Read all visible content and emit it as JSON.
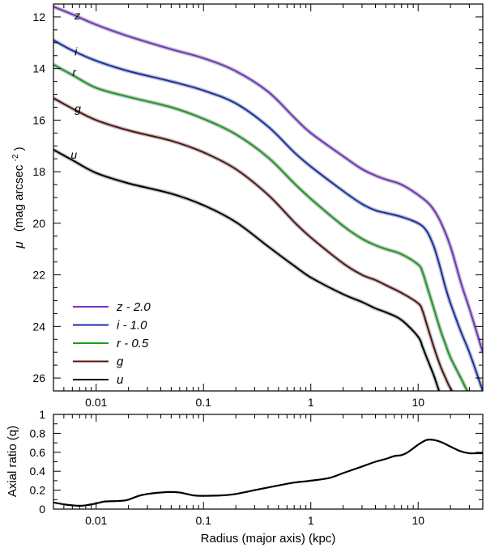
{
  "chart_data": [
    {
      "type": "line",
      "title": "",
      "xlabel": "",
      "ylabel_symbol": "μ",
      "ylabel_main": "(mag arcsec",
      "ylabel_exp": "-2",
      "ylabel_close": ")",
      "xscale": "log",
      "yaxis_inverted": true,
      "xlim": [
        0.004,
        40
      ],
      "ylim": [
        26.5,
        11.5
      ],
      "xticks": [
        {
          "v": 0.01,
          "label": "0.01"
        },
        {
          "v": 0.1,
          "label": "0.1"
        },
        {
          "v": 1,
          "label": "1"
        },
        {
          "v": 10,
          "label": "10"
        }
      ],
      "yticks": [
        {
          "v": 12,
          "label": "12"
        },
        {
          "v": 14,
          "label": "14"
        },
        {
          "v": 16,
          "label": "16"
        },
        {
          "v": 18,
          "label": "18"
        },
        {
          "v": 20,
          "label": "20"
        },
        {
          "v": 22,
          "label": "22"
        },
        {
          "v": 24,
          "label": "24"
        },
        {
          "v": 26,
          "label": "26"
        }
      ],
      "legend_position": "bottom-left",
      "legend": [
        {
          "label": "z - 2.0",
          "color": "#7a2fc9"
        },
        {
          "label": "i  - 1.0",
          "color": "#1a2fb0"
        },
        {
          "label": "r - 0.5",
          "color": "#1f9a1f"
        },
        {
          "label": "g",
          "color": "#5a1410"
        },
        {
          "label": "u",
          "color": "#000000"
        }
      ],
      "series": [
        {
          "name": "z",
          "label": "z",
          "color": "#7a2fc9",
          "label_at": [
            0.0063,
            12.1
          ],
          "x": [
            0.004,
            0.006,
            0.01,
            0.02,
            0.05,
            0.1,
            0.2,
            0.4,
            0.7,
            1,
            2,
            3,
            4,
            5,
            7,
            10,
            13,
            16,
            20,
            25,
            30,
            40
          ],
          "y": [
            11.6,
            11.9,
            12.3,
            12.75,
            13.25,
            13.6,
            14.1,
            14.9,
            15.9,
            16.5,
            17.4,
            17.9,
            18.15,
            18.3,
            18.5,
            18.9,
            19.3,
            19.9,
            20.9,
            22.3,
            23.3,
            25.0
          ]
        },
        {
          "name": "i",
          "label": "i",
          "color": "#1a2fb0",
          "label_at": [
            0.0063,
            13.5
          ],
          "x": [
            0.004,
            0.006,
            0.01,
            0.02,
            0.05,
            0.1,
            0.2,
            0.4,
            0.7,
            1,
            2,
            3,
            4,
            5,
            7,
            10,
            12,
            14,
            16,
            18,
            20,
            25,
            30,
            40
          ],
          "y": [
            12.9,
            13.3,
            13.7,
            14.1,
            14.5,
            14.85,
            15.35,
            16.25,
            17.25,
            17.8,
            18.75,
            19.25,
            19.5,
            19.6,
            19.75,
            20.0,
            20.3,
            20.9,
            21.7,
            22.5,
            23.1,
            24.2,
            25.0,
            26.5
          ]
        },
        {
          "name": "r",
          "label": "r",
          "color": "#1f9a1f",
          "label_at": [
            0.006,
            14.3
          ],
          "x": [
            0.004,
            0.006,
            0.01,
            0.02,
            0.05,
            0.1,
            0.2,
            0.4,
            0.7,
            1,
            2,
            3,
            4,
            5,
            7,
            10,
            11,
            12,
            14,
            16,
            18,
            20,
            25,
            30,
            40
          ],
          "y": [
            13.85,
            14.25,
            14.75,
            15.1,
            15.5,
            15.95,
            16.55,
            17.45,
            18.45,
            19.05,
            20.1,
            20.6,
            20.85,
            21.0,
            21.2,
            21.6,
            21.9,
            22.4,
            23.3,
            24.1,
            24.7,
            25.2,
            26.0,
            26.6,
            27.0
          ]
        },
        {
          "name": "g",
          "label": "g",
          "color": "#5a1410",
          "label_at": [
            0.0063,
            15.7
          ],
          "x": [
            0.004,
            0.006,
            0.01,
            0.02,
            0.05,
            0.1,
            0.2,
            0.4,
            0.7,
            1,
            2,
            3,
            4,
            5,
            7,
            10,
            11,
            12,
            14,
            16,
            18,
            20,
            25,
            30
          ],
          "y": [
            15.15,
            15.55,
            16.0,
            16.4,
            16.8,
            17.25,
            17.9,
            18.9,
            19.95,
            20.55,
            21.55,
            22.0,
            22.2,
            22.4,
            22.7,
            23.1,
            23.4,
            23.9,
            24.8,
            25.5,
            26.0,
            26.4,
            27.0,
            27.5
          ]
        },
        {
          "name": "u",
          "label": "u",
          "color": "#000000",
          "label_at": [
            0.0058,
            17.5
          ],
          "x": [
            0.004,
            0.006,
            0.01,
            0.02,
            0.05,
            0.1,
            0.2,
            0.4,
            0.7,
            1,
            2,
            3,
            4,
            5,
            7,
            10,
            11,
            12,
            14,
            16,
            18,
            20,
            25
          ],
          "y": [
            17.15,
            17.55,
            18.05,
            18.45,
            18.85,
            19.3,
            19.95,
            20.9,
            21.65,
            22.1,
            22.75,
            23.05,
            23.3,
            23.45,
            23.75,
            24.4,
            24.8,
            25.2,
            25.9,
            26.6,
            27.0,
            27.5,
            28.0
          ]
        }
      ]
    },
    {
      "type": "line",
      "title": "",
      "xlabel": "Radius (major axis)  (kpc)",
      "ylabel": "Axial ratio  (q)",
      "xscale": "log",
      "xlim": [
        0.004,
        40
      ],
      "ylim": [
        0,
        1
      ],
      "xticks": [
        {
          "v": 0.01,
          "label": "0.01"
        },
        {
          "v": 0.1,
          "label": "0.1"
        },
        {
          "v": 1,
          "label": "1"
        },
        {
          "v": 10,
          "label": "10"
        }
      ],
      "yticks": [
        {
          "v": 0,
          "label": "0"
        },
        {
          "v": 0.2,
          "label": "0.2"
        },
        {
          "v": 0.4,
          "label": "0.4"
        },
        {
          "v": 0.6,
          "label": "0.6"
        },
        {
          "v": 0.8,
          "label": "0.8"
        },
        {
          "v": 1,
          "label": "1"
        }
      ],
      "series": [
        {
          "color": "#000000",
          "x": [
            0.004,
            0.005,
            0.006,
            0.007,
            0.008,
            0.01,
            0.012,
            0.015,
            0.018,
            0.02,
            0.025,
            0.03,
            0.04,
            0.05,
            0.06,
            0.07,
            0.08,
            0.1,
            0.15,
            0.2,
            0.3,
            0.5,
            0.7,
            1,
            1.5,
            2,
            3,
            4,
            5,
            6,
            7,
            8,
            10,
            12,
            14,
            17,
            20,
            25,
            30,
            35,
            40
          ],
          "y": [
            0.07,
            0.05,
            0.04,
            0.035,
            0.04,
            0.06,
            0.08,
            0.085,
            0.09,
            0.1,
            0.14,
            0.16,
            0.175,
            0.18,
            0.175,
            0.16,
            0.145,
            0.14,
            0.145,
            0.16,
            0.2,
            0.25,
            0.28,
            0.3,
            0.33,
            0.38,
            0.45,
            0.5,
            0.53,
            0.56,
            0.57,
            0.6,
            0.68,
            0.73,
            0.73,
            0.7,
            0.66,
            0.61,
            0.59,
            0.59,
            0.59
          ]
        }
      ]
    }
  ]
}
